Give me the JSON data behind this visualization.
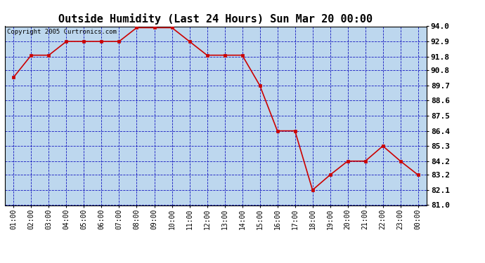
{
  "title": "Outside Humidity (Last 24 Hours) Sun Mar 20 00:00",
  "copyright": "Copyright 2005 Curtronics.com",
  "x_labels": [
    "01:00",
    "02:00",
    "03:00",
    "04:00",
    "05:00",
    "06:00",
    "07:00",
    "08:00",
    "09:00",
    "10:00",
    "11:00",
    "12:00",
    "13:00",
    "14:00",
    "15:00",
    "16:00",
    "17:00",
    "18:00",
    "19:00",
    "20:00",
    "21:00",
    "22:00",
    "23:00",
    "00:00"
  ],
  "x_values": [
    1,
    2,
    3,
    4,
    5,
    6,
    7,
    8,
    9,
    10,
    11,
    12,
    13,
    14,
    15,
    16,
    17,
    18,
    19,
    20,
    21,
    22,
    23,
    24
  ],
  "y_values": [
    90.3,
    91.9,
    91.9,
    92.9,
    92.9,
    92.9,
    92.9,
    93.9,
    93.9,
    93.9,
    92.9,
    91.9,
    91.9,
    91.9,
    89.7,
    86.4,
    86.4,
    82.1,
    83.2,
    84.2,
    84.2,
    85.3,
    84.2,
    83.2
  ],
  "ylim_min": 81.0,
  "ylim_max": 94.0,
  "ytick_values": [
    81.0,
    82.1,
    83.2,
    84.2,
    85.3,
    86.4,
    87.5,
    88.6,
    89.7,
    90.8,
    91.8,
    92.9,
    94.0
  ],
  "line_color": "#cc0000",
  "marker_color": "#cc0000",
  "bg_color": "#bdd7ee",
  "grid_color": "#0000bb",
  "title_fontsize": 11,
  "copyright_fontsize": 6.5,
  "tick_fontsize": 7,
  "ytick_fontsize": 8
}
